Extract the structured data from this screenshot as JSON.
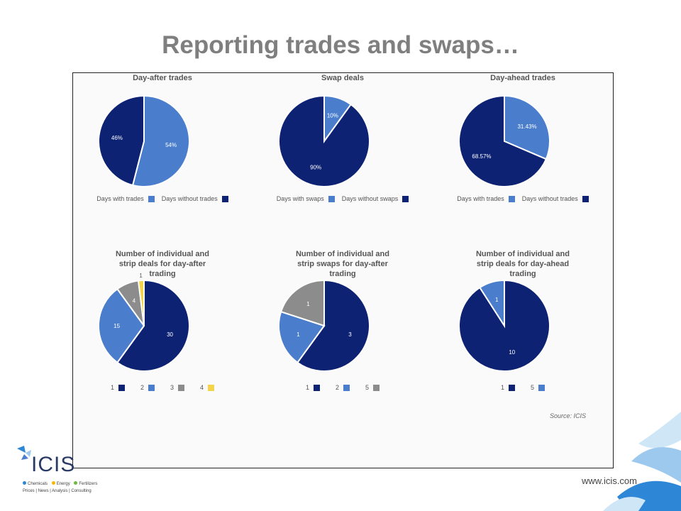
{
  "slide": {
    "title": "Reporting trades and swaps…",
    "source": "Source: ICIS",
    "website": "www.icis.com"
  },
  "logo": {
    "text": "ICIS",
    "line1_items": [
      "Chemicals",
      "Energy",
      "Fertilizers"
    ],
    "line2": "Prices | News | Analysis | Consulting"
  },
  "colors": {
    "dark_navy": "#0d2273",
    "mid_blue": "#4a7ecc",
    "grey": "#8c8c8c",
    "yellow": "#f5d44a",
    "accent_light_blue": "#9ec9ef",
    "accent_blue": "#2d86d6"
  },
  "chart_data": [
    {
      "type": "pie",
      "title": "Day-after trades",
      "series": [
        {
          "name": "Days with trades",
          "value": 54,
          "label": "54%",
          "color": "#4a7ecc"
        },
        {
          "name": "Days without trades",
          "value": 46,
          "label": "46%",
          "color": "#0d2273"
        }
      ],
      "legend": "bottom"
    },
    {
      "type": "pie",
      "title": "Swap deals",
      "series": [
        {
          "name": "Days with swaps",
          "value": 10,
          "label": "10%",
          "color": "#4a7ecc"
        },
        {
          "name": "Days without swaps",
          "value": 90,
          "label": "90%",
          "color": "#0d2273"
        }
      ],
      "legend": "bottom"
    },
    {
      "type": "pie",
      "title": "Day-ahead trades",
      "series": [
        {
          "name": "Days with trades",
          "value": 31.43,
          "label": "31.43%",
          "color": "#4a7ecc"
        },
        {
          "name": "Days without trades",
          "value": 68.57,
          "label": "68.57%",
          "color": "#0d2273"
        }
      ],
      "legend": "bottom"
    },
    {
      "type": "pie",
      "title": "Number of individual and strip deals for day-after trading",
      "series": [
        {
          "name": "1",
          "value": 30,
          "label": "30",
          "color": "#0d2273"
        },
        {
          "name": "2",
          "value": 15,
          "label": "15",
          "color": "#4a7ecc"
        },
        {
          "name": "3",
          "value": 4,
          "label": "4",
          "color": "#8c8c8c"
        },
        {
          "name": "4",
          "value": 1,
          "label": "1",
          "color": "#f5d44a"
        }
      ],
      "legend": "bottom"
    },
    {
      "type": "pie",
      "title": "Number of individual and strip swaps for day-after trading",
      "series": [
        {
          "name": "1",
          "value": 3,
          "label": "3",
          "color": "#0d2273"
        },
        {
          "name": "2",
          "value": 1,
          "label": "1",
          "color": "#4a7ecc"
        },
        {
          "name": "5",
          "value": 1,
          "label": "1",
          "color": "#8c8c8c"
        }
      ],
      "legend": "bottom"
    },
    {
      "type": "pie",
      "title": "Number of individual and strip deals for day-ahead trading",
      "series": [
        {
          "name": "1",
          "value": 10,
          "label": "10",
          "color": "#0d2273"
        },
        {
          "name": "5",
          "value": 1,
          "label": "1",
          "color": "#4a7ecc"
        }
      ],
      "legend": "bottom"
    }
  ]
}
